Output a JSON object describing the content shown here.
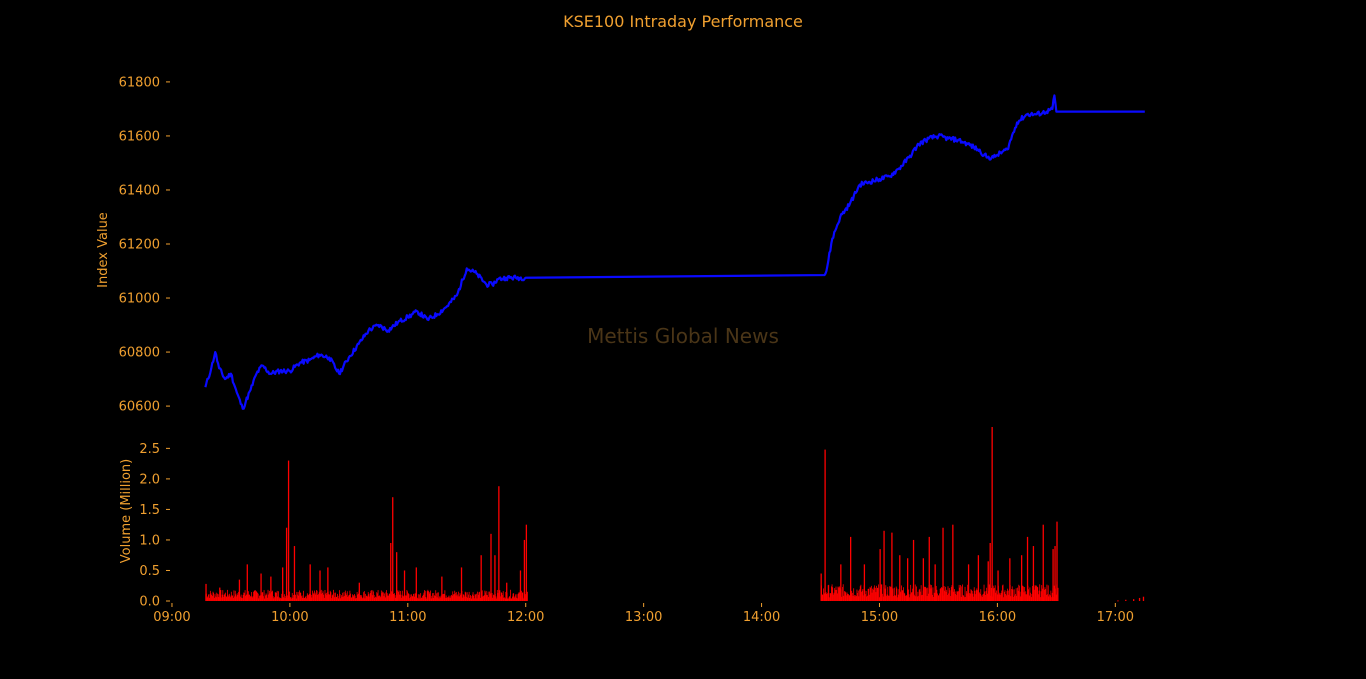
{
  "colors": {
    "background": "#000000",
    "text": "#f0a030",
    "price_line": "#0a0aff",
    "volume_bar": "#ff0000",
    "watermark": "#4a3517"
  },
  "chart_data": [
    {
      "type": "line",
      "title": "KSE100 Intraday Performance",
      "ylabel": "Index Value",
      "xlabel": "",
      "watermark": "Mettis Global News",
      "ylim": [
        60530,
        61870
      ],
      "yticks": [
        60600,
        60800,
        61000,
        61200,
        61400,
        61600,
        61800
      ],
      "grid": false,
      "series": [
        {
          "x": [
            "09:17",
            "09:20",
            "09:22",
            "09:24",
            "09:27",
            "09:30",
            "09:33",
            "09:36",
            "09:40",
            "09:43",
            "09:46",
            "09:50",
            "09:55",
            "10:00",
            "10:05",
            "10:10",
            "10:15",
            "10:20",
            "10:25",
            "10:30",
            "10:35",
            "10:40",
            "10:45",
            "10:50",
            "10:55",
            "11:00",
            "11:05",
            "11:10",
            "11:15",
            "11:20",
            "11:25",
            "11:30",
            "11:35",
            "11:40",
            "11:43",
            "11:46",
            "11:50",
            "11:55",
            "12:00",
            "14:32",
            "14:33",
            "14:36",
            "14:40",
            "14:45",
            "14:50",
            "14:55",
            "15:00",
            "15:05",
            "15:10",
            "15:15",
            "15:20",
            "15:25",
            "15:30",
            "15:35",
            "15:40",
            "15:45",
            "15:50",
            "15:55",
            "15:58",
            "16:00",
            "16:05",
            "16:10",
            "16:15",
            "16:20",
            "16:25",
            "16:28",
            "16:29",
            "16:30",
            "16:40",
            "16:50",
            "17:00",
            "17:10",
            "17:15"
          ],
          "y": [
            60670,
            60740,
            60800,
            60740,
            60700,
            60720,
            60650,
            60590,
            60660,
            60720,
            60750,
            60720,
            60730,
            60730,
            60760,
            60770,
            60790,
            60780,
            60720,
            60780,
            60830,
            60880,
            60900,
            60880,
            60910,
            60930,
            60950,
            60920,
            60940,
            60970,
            61010,
            61110,
            61090,
            61050,
            61050,
            61070,
            61075,
            61075,
            61075,
            61085,
            61100,
            61220,
            61300,
            61350,
            61420,
            61430,
            61440,
            61450,
            61480,
            61520,
            61570,
            61590,
            61600,
            61590,
            61585,
            61570,
            61550,
            61520,
            61520,
            61530,
            61550,
            61650,
            61680,
            61680,
            61690,
            61700,
            61750,
            61690,
            61690,
            61690,
            61690,
            61690,
            61690
          ]
        }
      ]
    },
    {
      "type": "bar",
      "ylabel": "Volume (Million)",
      "xlabel": "",
      "ylim": [
        0,
        2.85
      ],
      "yticks": [
        "0.0",
        "0.5",
        "1.0",
        "1.5",
        "2.0",
        "2.5"
      ],
      "xticks": [
        "09:00",
        "10:00",
        "11:00",
        "12:00",
        "13:00",
        "14:00",
        "15:00",
        "16:00",
        "17:00"
      ],
      "xlim": [
        "08:59",
        "17:38"
      ],
      "grid": false,
      "spikes": [
        {
          "t": "09:17",
          "v": 0.28
        },
        {
          "t": "09:24",
          "v": 0.22
        },
        {
          "t": "09:34",
          "v": 0.35
        },
        {
          "t": "09:38",
          "v": 0.6
        },
        {
          "t": "09:45",
          "v": 0.45
        },
        {
          "t": "09:50",
          "v": 0.4
        },
        {
          "t": "09:56",
          "v": 0.55
        },
        {
          "t": "09:58",
          "v": 1.2
        },
        {
          "t": "09:59",
          "v": 2.3
        },
        {
          "t": "10:02",
          "v": 0.9
        },
        {
          "t": "10:10",
          "v": 0.6
        },
        {
          "t": "10:15",
          "v": 0.5
        },
        {
          "t": "10:19",
          "v": 0.55
        },
        {
          "t": "10:35",
          "v": 0.3
        },
        {
          "t": "10:51",
          "v": 0.95
        },
        {
          "t": "10:52",
          "v": 1.7
        },
        {
          "t": "10:54",
          "v": 0.8
        },
        {
          "t": "10:58",
          "v": 0.5
        },
        {
          "t": "11:04",
          "v": 0.55
        },
        {
          "t": "11:17",
          "v": 0.4
        },
        {
          "t": "11:27",
          "v": 0.55
        },
        {
          "t": "11:37",
          "v": 0.75
        },
        {
          "t": "11:42",
          "v": 1.1
        },
        {
          "t": "11:44",
          "v": 0.75
        },
        {
          "t": "11:46",
          "v": 1.88
        },
        {
          "t": "11:50",
          "v": 0.3
        },
        {
          "t": "11:57",
          "v": 0.5
        },
        {
          "t": "11:59",
          "v": 1.0
        },
        {
          "t": "12:00",
          "v": 1.25
        },
        {
          "t": "14:30",
          "v": 0.45
        },
        {
          "t": "14:32",
          "v": 2.48
        },
        {
          "t": "14:40",
          "v": 0.6
        },
        {
          "t": "14:45",
          "v": 1.05
        },
        {
          "t": "14:52",
          "v": 0.6
        },
        {
          "t": "15:00",
          "v": 0.85
        },
        {
          "t": "15:02",
          "v": 1.15
        },
        {
          "t": "15:06",
          "v": 1.12
        },
        {
          "t": "15:10",
          "v": 0.75
        },
        {
          "t": "15:14",
          "v": 0.7
        },
        {
          "t": "15:17",
          "v": 1.0
        },
        {
          "t": "15:22",
          "v": 0.7
        },
        {
          "t": "15:25",
          "v": 1.05
        },
        {
          "t": "15:28",
          "v": 0.6
        },
        {
          "t": "15:32",
          "v": 1.2
        },
        {
          "t": "15:37",
          "v": 1.25
        },
        {
          "t": "15:45",
          "v": 0.6
        },
        {
          "t": "15:50",
          "v": 0.75
        },
        {
          "t": "15:55",
          "v": 0.65
        },
        {
          "t": "15:56",
          "v": 0.95
        },
        {
          "t": "15:57",
          "v": 2.85
        },
        {
          "t": "16:00",
          "v": 0.5
        },
        {
          "t": "16:06",
          "v": 0.7
        },
        {
          "t": "16:12",
          "v": 0.75
        },
        {
          "t": "16:15",
          "v": 1.05
        },
        {
          "t": "16:18",
          "v": 0.9
        },
        {
          "t": "16:23",
          "v": 1.25
        },
        {
          "t": "16:28",
          "v": 0.85
        },
        {
          "t": "16:29",
          "v": 0.9
        },
        {
          "t": "16:30",
          "v": 1.3
        }
      ],
      "tail_bars": [
        {
          "t": "17:01",
          "v": 0.01
        },
        {
          "t": "17:05",
          "v": 0.02
        },
        {
          "t": "17:09",
          "v": 0.03
        },
        {
          "t": "17:12",
          "v": 0.05
        },
        {
          "t": "17:14",
          "v": 0.07
        }
      ]
    }
  ]
}
